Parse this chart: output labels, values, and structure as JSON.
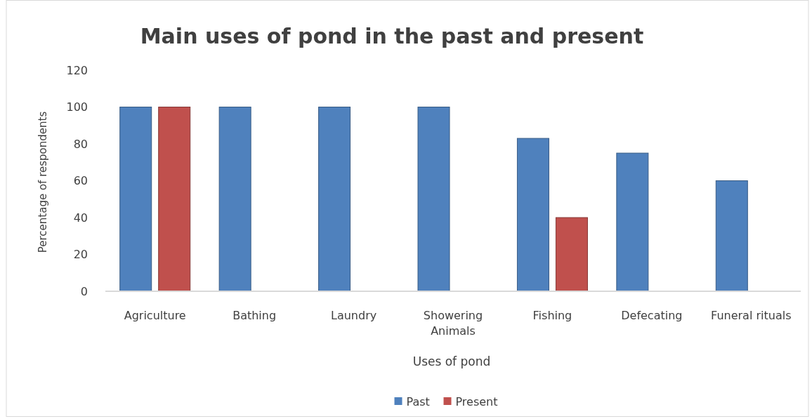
{
  "chart_data": {
    "type": "bar",
    "title": "Main uses of pond in the past and present",
    "xlabel": "Uses of pond",
    "ylabel": "Percentage of respondents",
    "categories": [
      "Agriculture",
      "Bathing",
      "Laundry",
      "Showering Animals",
      "Fishing",
      "Defecating",
      "Funeral rituals"
    ],
    "series": [
      {
        "name": "Past",
        "color": "#4f81bd",
        "values": [
          100,
          100,
          100,
          100,
          83,
          75,
          60
        ]
      },
      {
        "name": "Present",
        "color": "#c0504d",
        "values": [
          100,
          null,
          null,
          null,
          40,
          null,
          null
        ]
      }
    ],
    "ylim": [
      0,
      120
    ],
    "yticks": [
      0,
      20,
      40,
      60,
      80,
      100,
      120
    ],
    "grid": false,
    "legend": "bottom"
  }
}
